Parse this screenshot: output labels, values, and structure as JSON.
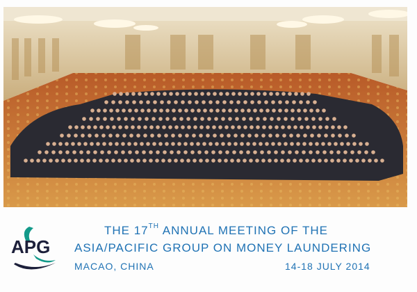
{
  "photo": {
    "subject": "group-photo",
    "colors": {
      "wall": "#d9c49a",
      "carpet": "#c8742e",
      "crowd": "#22222a",
      "ceiling": "#e8dcc4"
    }
  },
  "caption": {
    "line1_prefix": "THE 17",
    "line1_sup": "TH",
    "line1_suffix": " ANNUAL MEETING OF THE",
    "line2": "ASIA/PACIFIC GROUP ON MONEY LAUNDERING",
    "location": "MACAO, CHINA",
    "dates": "14-18 JULY 2014",
    "color": "#1f72b4"
  },
  "logo": {
    "text": "APG",
    "colors": {
      "dark": "#1c1f3a",
      "teal": "#139a8a"
    }
  }
}
